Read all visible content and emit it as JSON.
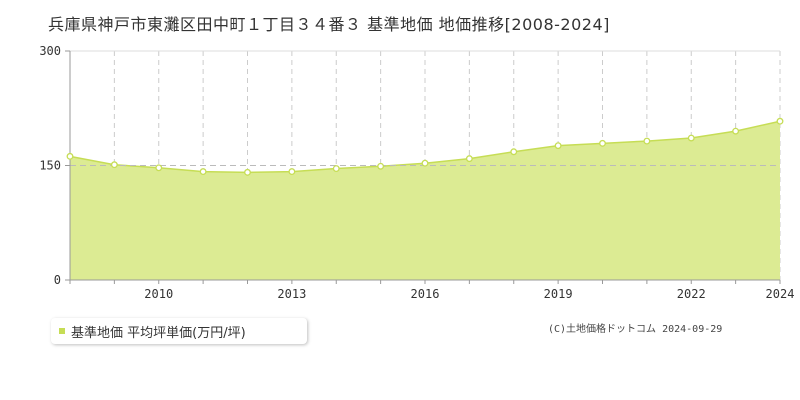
{
  "title": "兵庫県神戸市東灘区田中町１丁目３４番３ 基準地価 地価推移[2008-2024]",
  "chart_data": {
    "type": "area",
    "title": "兵庫県神戸市東灘区田中町１丁目３４番３ 基準地価 地価推移[2008-2024]",
    "x": [
      2008,
      2009,
      2010,
      2011,
      2012,
      2013,
      2014,
      2015,
      2016,
      2017,
      2018,
      2019,
      2020,
      2021,
      2022,
      2023,
      2024
    ],
    "series": [
      {
        "name": "基準地価 平均坪単価(万円/坪)",
        "values": [
          162,
          151,
          147,
          142,
          141,
          142,
          146,
          149,
          153,
          159,
          168,
          176,
          179,
          182,
          186,
          195,
          208
        ]
      }
    ],
    "xlim": [
      2008,
      2024
    ],
    "ylim": [
      0,
      300
    ],
    "x_tick_labels": [
      "2010",
      "2013",
      "2016",
      "2019",
      "2022",
      "2024"
    ],
    "y_tick_labels": [
      "300",
      "150",
      "0"
    ],
    "reference_line": 150,
    "grid": true,
    "legend": "bottom-left",
    "colors": {
      "fill": "#dceb93",
      "line": "#c6dd55",
      "grid": "#cccccc",
      "axis": "#999999"
    }
  },
  "legend": {
    "label": "基準地価 平均坪単価(万円/坪)"
  },
  "credit": "(C)土地価格ドットコム 2024-09-29"
}
